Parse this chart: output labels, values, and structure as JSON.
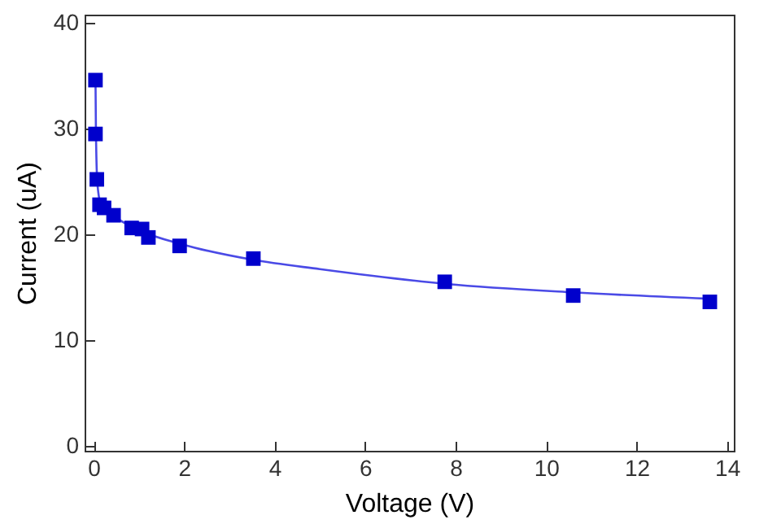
{
  "chart_data": {
    "type": "scatter",
    "xlabel": "Voltage (V)",
    "ylabel": "Current (uA)",
    "xlim": [
      -0.2,
      14.15
    ],
    "ylim": [
      -0.5,
      40.8
    ],
    "xticks": [
      0,
      2,
      4,
      6,
      8,
      10,
      12,
      14
    ],
    "yticks": [
      0,
      10,
      20,
      30,
      40
    ],
    "grid": false,
    "series": [
      {
        "marker": "square",
        "color": "#0000cc",
        "x": [
          0.04,
          0.04,
          0.07,
          0.13,
          0.23,
          0.44,
          0.84,
          1.07,
          1.21,
          1.9,
          3.53,
          7.76,
          10.6,
          13.62
        ],
        "values": [
          34.6,
          29.5,
          25.2,
          22.8,
          22.5,
          21.8,
          20.6,
          20.5,
          19.7,
          18.9,
          17.7,
          15.5,
          14.2,
          13.6
        ]
      },
      {
        "type": "line",
        "color": "#4a4ae6",
        "line_style": "solid",
        "x": [
          0.04,
          0.05,
          0.08,
          0.15,
          0.4,
          1,
          2,
          3.5,
          5,
          7.8,
          10.6,
          13.6
        ],
        "values": [
          35,
          30,
          25,
          23,
          21.9,
          20.4,
          19,
          17.6,
          16.7,
          15.3,
          14.5,
          13.9
        ]
      }
    ]
  }
}
